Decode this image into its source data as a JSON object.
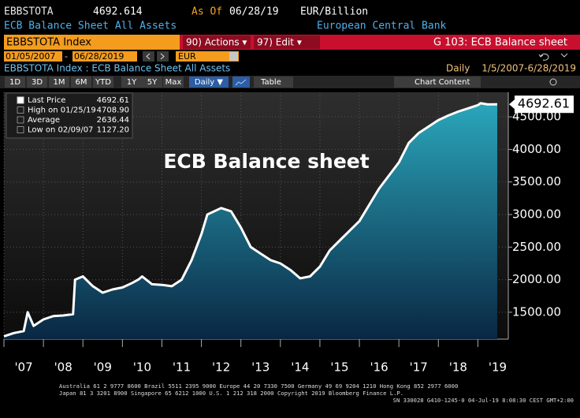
{
  "header": {
    "ticker": "EBBSTOTA",
    "price": "4692.614",
    "as_of_label": "As Of",
    "as_of_date": "06/28/19",
    "units": "EUR/Billion",
    "description": "ECB Balance Sheet All Assets",
    "source": "European Central Bank"
  },
  "command_bar": {
    "security": "EBBSTOTA Index",
    "actions": "90) Actions ▾",
    "edit": "97) Edit ▾",
    "function": "G 103: ECB Balance sheet"
  },
  "range_bar": {
    "start_date": "01/05/2007",
    "separator": "-",
    "end_date": "06/28/2019",
    "currency": "EUR"
  },
  "info_bar": {
    "security_line": "EBBSTOTA Index : ECB Balance Sheet All Assets",
    "frequency": "Daily",
    "date_range": "1/5/2007-6/28/2019"
  },
  "tabs": [
    "1D",
    "3D",
    "1M",
    "6M",
    "YTD",
    "1Y",
    "5Y",
    "Max",
    "Daily ▼"
  ],
  "table_button": "Table",
  "chart_content_button": "Chart Content",
  "chart_data": {
    "type": "area",
    "title": "ECB Balance sheet",
    "x": [
      2007.0,
      2007.25,
      2007.5,
      2007.6,
      2007.75,
      2008.0,
      2008.25,
      2008.5,
      2008.75,
      2008.8,
      2009.0,
      2009.25,
      2009.5,
      2009.75,
      2010.0,
      2010.25,
      2010.4,
      2010.5,
      2010.75,
      2011.0,
      2011.25,
      2011.5,
      2011.75,
      2012.0,
      2012.15,
      2012.5,
      2012.75,
      2013.0,
      2013.25,
      2013.5,
      2013.75,
      2014.0,
      2014.25,
      2014.5,
      2014.75,
      2015.0,
      2015.25,
      2015.5,
      2015.75,
      2016.0,
      2016.25,
      2016.5,
      2016.75,
      2017.0,
      2017.25,
      2017.5,
      2017.75,
      2018.0,
      2018.25,
      2018.5,
      2018.75,
      2019.0,
      2019.07,
      2019.25,
      2019.49
    ],
    "values": [
      1130,
      1180,
      1210,
      1500,
      1290,
      1390,
      1440,
      1450,
      1470,
      2000,
      2050,
      1900,
      1800,
      1850,
      1880,
      1950,
      2000,
      2050,
      1930,
      1920,
      1900,
      2000,
      2300,
      2700,
      3000,
      3100,
      3050,
      2800,
      2500,
      2400,
      2300,
      2250,
      2150,
      2020,
      2050,
      2200,
      2450,
      2600,
      2750,
      2900,
      3150,
      3400,
      3600,
      3800,
      4100,
      4250,
      4350,
      4450,
      4520,
      4580,
      4630,
      4680,
      4708.9,
      4690,
      4692.614
    ],
    "color": "#ffffff",
    "fill_colors": [
      "#2aa6bb",
      "#0a2743"
    ],
    "xlim": [
      2007.0,
      2019.77
    ],
    "xticks": [
      {
        "value": 2007,
        "label": "'07"
      },
      {
        "value": 2008,
        "label": "'08"
      },
      {
        "value": 2009,
        "label": "'09"
      },
      {
        "value": 2010,
        "label": "'10"
      },
      {
        "value": 2011,
        "label": "'11"
      },
      {
        "value": 2012,
        "label": "'12"
      },
      {
        "value": 2013,
        "label": "'13"
      },
      {
        "value": 2014,
        "label": "'14"
      },
      {
        "value": 2015,
        "label": "'15"
      },
      {
        "value": 2016,
        "label": "'16"
      },
      {
        "value": 2017,
        "label": "'17"
      },
      {
        "value": 2018,
        "label": "'18"
      },
      {
        "value": 2019,
        "label": "'19"
      }
    ],
    "ylim": [
      1087,
      4877
    ],
    "yticks": [
      {
        "value": 1500,
        "label": "1500.00"
      },
      {
        "value": 2000,
        "label": "2000.00"
      },
      {
        "value": 2500,
        "label": "2500.00"
      },
      {
        "value": 3000,
        "label": "3000.00"
      },
      {
        "value": 3500,
        "label": "3500.00"
      },
      {
        "value": 4000,
        "label": "4000.00"
      },
      {
        "value": 4500,
        "label": "4500.00"
      }
    ],
    "grid": true,
    "last_label": "4692.61",
    "legend": {
      "position": "top-left",
      "entries": [
        {
          "name": "Last Price",
          "value": "4692.61"
        },
        {
          "name": "High on 01/25/19",
          "value": "4708.90"
        },
        {
          "name": "Average",
          "value": "2636.44"
        },
        {
          "name": "Low on 02/09/07",
          "value": "1127.20"
        }
      ]
    }
  },
  "footer": [
    "Australia 61 2 9777 8600 Brazil 5511 2395 9000 Europe 44 20 7330 7500 Germany 49 69 9204 1210 Hong Kong 852 2977 6000",
    "Japan 81 3 3201 8900       Singapore 65 6212 1000       U.S. 1 212 318 2000       Copyright 2019 Bloomberg Finance L.P.",
    "SN 330028 G410-1245-0 04-Jul-19  8:08:30 CEST  GMT+2:00"
  ]
}
